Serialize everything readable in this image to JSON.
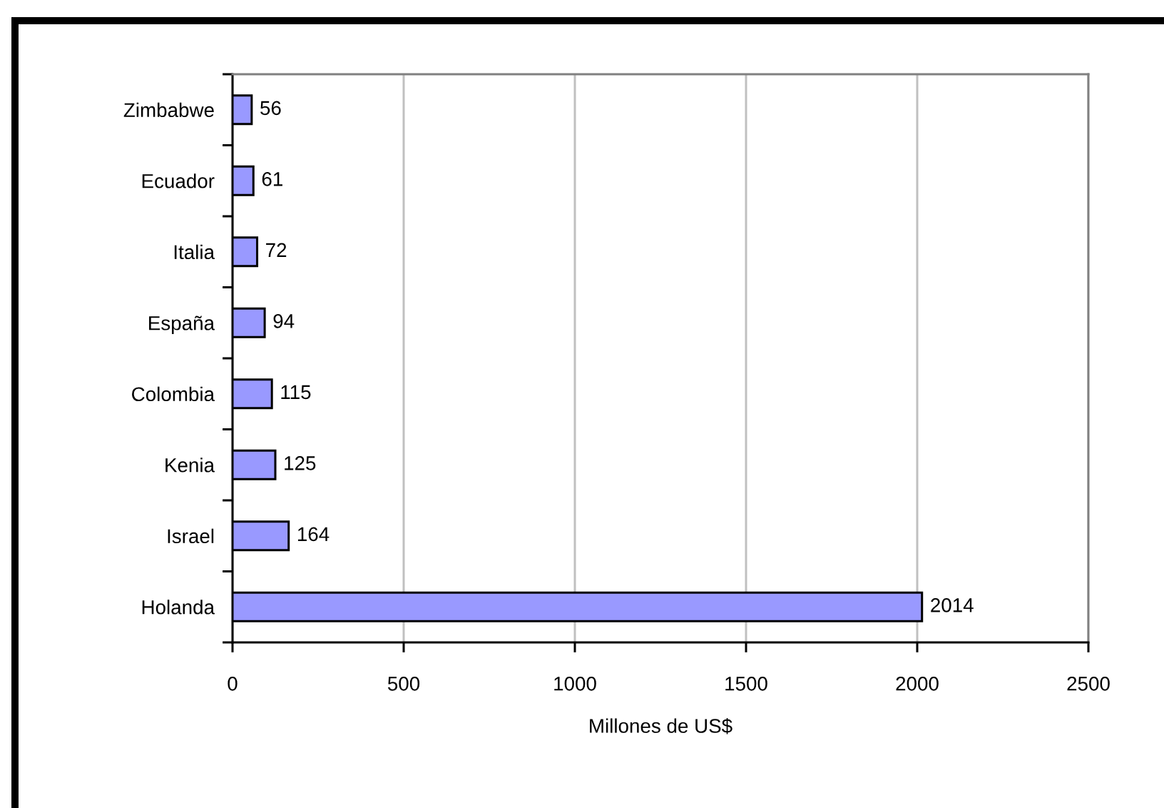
{
  "chart_data": {
    "type": "bar",
    "orientation": "horizontal",
    "categories": [
      "Zimbabwe",
      "Ecuador",
      "Italia",
      "España",
      "Colombia",
      "Kenia",
      "Israel",
      "Holanda"
    ],
    "values": [
      56,
      61,
      72,
      94,
      115,
      125,
      164,
      2014
    ],
    "color": "#9999ff",
    "xlabel": "Millones de US$",
    "xlim": [
      0,
      2500
    ],
    "xticks": [
      0,
      500,
      1000,
      1500,
      2000,
      2500
    ],
    "grid": "x",
    "data_labels": true
  }
}
